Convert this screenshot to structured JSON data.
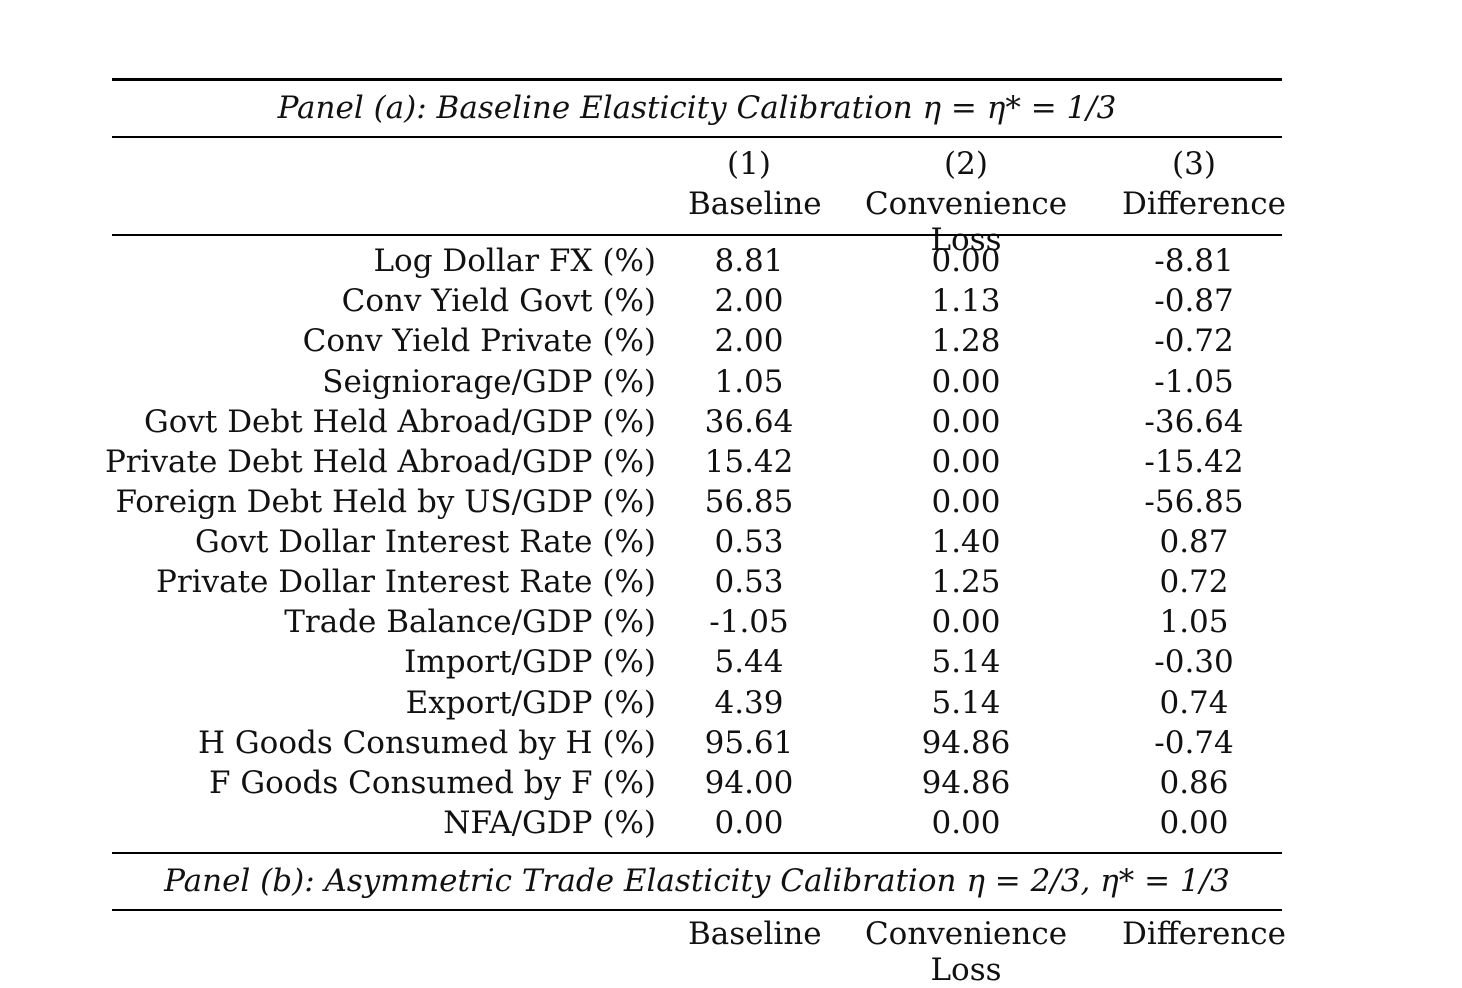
{
  "panel_a": {
    "title": "Panel (a): Baseline Elasticity Calibration η = η* = 1/3",
    "columns": [
      {
        "number": "(1)",
        "label": "Baseline"
      },
      {
        "number": "(2)",
        "label": "Convenience Loss"
      },
      {
        "number": "(3)",
        "label": "Difference"
      }
    ],
    "rows": [
      {
        "label": "Log Dollar FX (%)",
        "baseline": "8.81",
        "convenience_loss": "0.00",
        "difference": "-8.81"
      },
      {
        "label": "Conv Yield Govt (%)",
        "baseline": "2.00",
        "convenience_loss": "1.13",
        "difference": "-0.87"
      },
      {
        "label": "Conv Yield Private (%)",
        "baseline": "2.00",
        "convenience_loss": "1.28",
        "difference": "-0.72"
      },
      {
        "label": "Seigniorage/GDP (%)",
        "baseline": "1.05",
        "convenience_loss": "0.00",
        "difference": "-1.05"
      },
      {
        "label": "Govt Debt Held Abroad/GDP (%)",
        "baseline": "36.64",
        "convenience_loss": "0.00",
        "difference": "-36.64"
      },
      {
        "label": "Private Debt Held Abroad/GDP (%)",
        "baseline": "15.42",
        "convenience_loss": "0.00",
        "difference": "-15.42"
      },
      {
        "label": "Foreign Debt Held by US/GDP (%)",
        "baseline": "56.85",
        "convenience_loss": "0.00",
        "difference": "-56.85"
      },
      {
        "label": "Govt Dollar Interest Rate (%)",
        "baseline": "0.53",
        "convenience_loss": "1.40",
        "difference": "0.87"
      },
      {
        "label": "Private Dollar Interest Rate (%)",
        "baseline": "0.53",
        "convenience_loss": "1.25",
        "difference": "0.72"
      },
      {
        "label": "Trade Balance/GDP (%)",
        "baseline": "-1.05",
        "convenience_loss": "0.00",
        "difference": "1.05"
      },
      {
        "label": "Import/GDP (%)",
        "baseline": "5.44",
        "convenience_loss": "5.14",
        "difference": "-0.30"
      },
      {
        "label": "Export/GDP (%)",
        "baseline": "4.39",
        "convenience_loss": "5.14",
        "difference": "0.74"
      },
      {
        "label": "H Goods Consumed by H (%)",
        "baseline": "95.61",
        "convenience_loss": "94.86",
        "difference": "-0.74"
      },
      {
        "label": "F Goods Consumed by F (%)",
        "baseline": "94.00",
        "convenience_loss": "94.86",
        "difference": "0.86"
      },
      {
        "label": "NFA/GDP (%)",
        "baseline": "0.00",
        "convenience_loss": "0.00",
        "difference": "0.00"
      }
    ]
  },
  "panel_b": {
    "title": "Panel (b): Asymmetric Trade Elasticity Calibration η = 2/3, η* = 1/3",
    "columns": [
      {
        "label": "Baseline"
      },
      {
        "label": "Convenience Loss"
      },
      {
        "label": "Difference"
      }
    ]
  }
}
